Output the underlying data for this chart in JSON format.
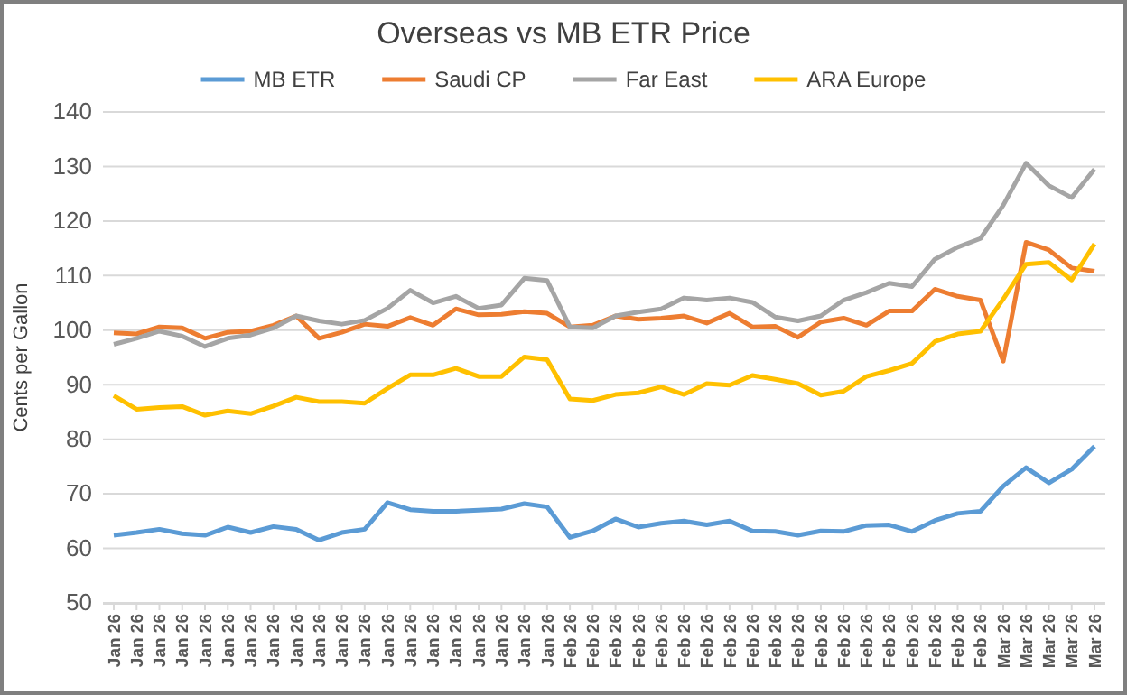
{
  "chart_data": {
    "type": "line",
    "title": "Overseas vs MB ETR Price",
    "ylabel": "Cents per Gallon",
    "categories": [
      "Jan 26",
      "Jan 26",
      "Jan 26",
      "Jan 26",
      "Jan 26",
      "Jan 26",
      "Jan 26",
      "Jan 26",
      "Jan 26",
      "Jan 26",
      "Jan 26",
      "Jan 26",
      "Jan 26",
      "Jan 26",
      "Jan 26",
      "Jan 26",
      "Jan 26",
      "Jan 26",
      "Jan 26",
      "Jan 26",
      "Feb 26",
      "Feb 26",
      "Feb 26",
      "Feb 26",
      "Feb 26",
      "Feb 26",
      "Feb 26",
      "Feb 26",
      "Feb 26",
      "Feb 26",
      "Feb 26",
      "Feb 26",
      "Feb 26",
      "Feb 26",
      "Feb 26",
      "Feb 26",
      "Feb 26",
      "Feb 26",
      "Feb 26",
      "Mar 26",
      "Mar 26",
      "Mar 26",
      "Mar 26",
      "Mar 26"
    ],
    "series": [
      {
        "name": "MB ETR",
        "color": "#5b9bd5",
        "values": [
          62.4,
          62.9,
          63.5,
          62.7,
          62.4,
          63.9,
          62.9,
          64.0,
          63.5,
          61.5,
          62.9,
          63.5,
          68.4,
          67.1,
          66.8,
          66.8,
          67.0,
          67.2,
          68.2,
          67.6,
          62.0,
          63.2,
          65.4,
          63.9,
          64.6,
          65.0,
          64.3,
          65.0,
          63.2,
          63.1,
          62.4,
          63.2,
          63.1,
          64.2,
          64.3,
          63.1,
          65.1,
          66.4,
          66.8,
          71.4,
          74.8,
          72.0,
          74.5,
          78.7
        ]
      },
      {
        "name": "Saudi CP",
        "color": "#ed7d31",
        "values": [
          99.5,
          99.3,
          100.6,
          100.4,
          98.5,
          99.6,
          99.8,
          100.9,
          102.6,
          98.5,
          99.6,
          101.1,
          100.7,
          102.3,
          100.9,
          103.9,
          102.8,
          102.9,
          103.4,
          103.1,
          100.6,
          100.9,
          102.6,
          102.0,
          102.2,
          102.6,
          101.3,
          103.1,
          100.6,
          100.7,
          98.7,
          101.5,
          102.2,
          100.9,
          103.5,
          103.5,
          107.5,
          106.2,
          105.5,
          94.3,
          116.1,
          114.7,
          111.4,
          110.8
        ]
      },
      {
        "name": "Far East",
        "color": "#a5a5a5",
        "values": [
          97.4,
          98.5,
          99.8,
          98.9,
          97.0,
          98.5,
          99.1,
          100.4,
          102.6,
          101.7,
          101.1,
          101.8,
          104.0,
          107.3,
          105.0,
          106.2,
          104.0,
          104.6,
          109.5,
          109.1,
          100.6,
          100.4,
          102.6,
          103.3,
          103.9,
          105.9,
          105.5,
          105.9,
          105.1,
          102.4,
          101.7,
          102.6,
          105.5,
          106.9,
          108.6,
          108.0,
          113.0,
          115.2,
          116.8,
          122.9,
          130.6,
          126.5,
          124.3,
          129.5
        ]
      },
      {
        "name": "ARA Europe",
        "color": "#ffc000",
        "values": [
          88.0,
          85.5,
          85.8,
          86.0,
          84.4,
          85.2,
          84.7,
          86.1,
          87.7,
          86.9,
          86.9,
          86.6,
          89.3,
          91.8,
          91.8,
          93.0,
          91.5,
          91.5,
          95.1,
          94.6,
          87.4,
          87.1,
          88.2,
          88.5,
          89.6,
          88.2,
          90.2,
          89.9,
          91.7,
          91.0,
          90.2,
          88.1,
          88.8,
          91.5,
          92.6,
          93.9,
          97.9,
          99.3,
          99.8,
          105.7,
          112.1,
          112.4,
          109.2,
          115.8
        ]
      }
    ],
    "ylim": [
      50,
      140
    ],
    "yticks": [
      50,
      60,
      70,
      80,
      90,
      100,
      110,
      120,
      130,
      140
    ],
    "grid": "y",
    "legend": "top",
    "marker": "none",
    "line_style": "solid"
  }
}
